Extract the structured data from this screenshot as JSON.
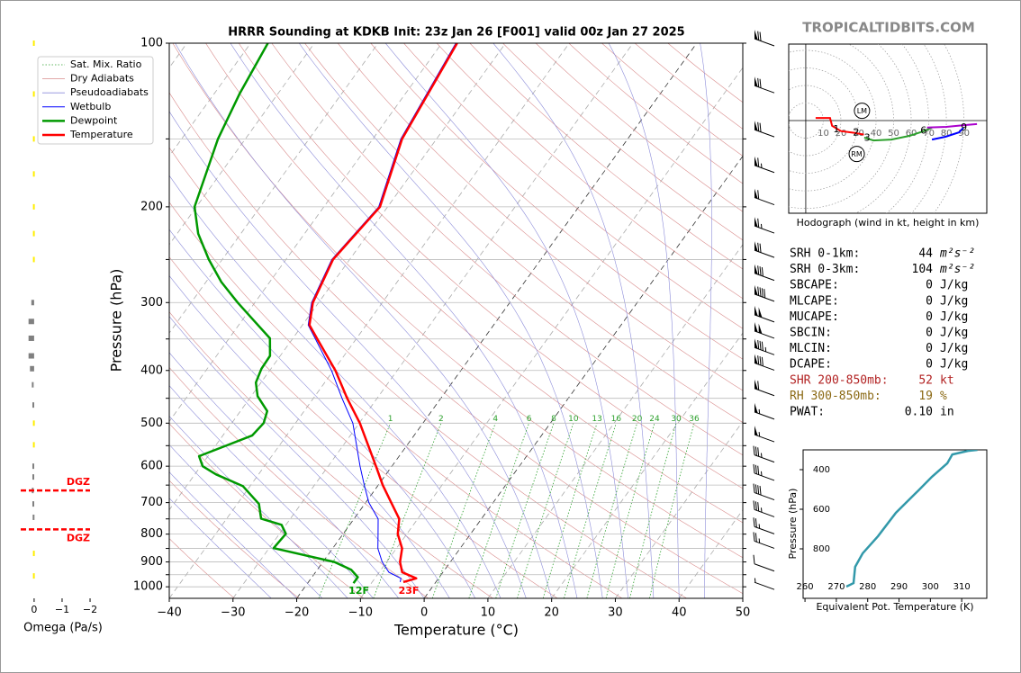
{
  "brand": "TROPICALTIDBITS.COM",
  "chart_data": [
    {
      "type": "skewt",
      "title": "HRRR Sounding at KDKB Init: 23z Jan 26 [F001] valid 00z Jan 27 2025",
      "x_label": "Temperature (°C)",
      "y_label": "Pressure (hPa)",
      "log_y": true,
      "grid": true,
      "legend": "upper left",
      "xlim": [
        -40,
        50
      ],
      "xticks": [
        {
          "value": -40,
          "label": "−40"
        },
        {
          "value": -30,
          "label": "−30"
        },
        {
          "value": -20,
          "label": "−20"
        },
        {
          "value": -10,
          "label": "−10"
        },
        0,
        10,
        20,
        30,
        40,
        50
      ],
      "ylim": [
        1050,
        100
      ],
      "yticks": [
        100,
        200,
        300,
        400,
        500,
        600,
        700,
        800,
        900,
        1000
      ],
      "minor_yticks": [
        150,
        250,
        350,
        450,
        550,
        650,
        750,
        850,
        950
      ],
      "reference_lines": [
        {
          "name": "Sat. Mix. Ratio",
          "color": "#2ca02c"
        },
        {
          "name": "Dry Adiabats",
          "color": "#d98c8c"
        },
        {
          "name": "Pseudoadiabats",
          "color": "#8c8cd9"
        }
      ],
      "series": [
        {
          "name": "Wetbulb",
          "color": "#0000ff",
          "pressure": [
            980,
            965,
            940,
            900,
            850,
            800,
            750,
            700,
            650,
            600,
            500,
            450,
            400,
            350,
            330,
            300,
            250,
            200,
            150,
            100
          ],
          "values": [
            -5.6,
            -5.9,
            -8.5,
            -10.7,
            -12.9,
            -14.5,
            -16.2,
            -19.5,
            -22.2,
            -25,
            -31,
            -35.5,
            -40.3,
            -46.4,
            -49.1,
            -51.1,
            -52.8,
            -51.4,
            -55.6,
            -57.8
          ]
        },
        {
          "name": "Dewpoint",
          "color": "#009900",
          "pressure": [
            985,
            960,
            930,
            900,
            849,
            799,
            769,
            749,
            704,
            653,
            621,
            600,
            575,
            527,
            500,
            475,
            446,
            421,
            397,
            376,
            349,
            325,
            300,
            275,
            250,
            224,
            200,
            150,
            124,
            100
          ],
          "values": [
            -12.8,
            -12.8,
            -14.7,
            -18.2,
            -29.3,
            -29.0,
            -30.7,
            -34.6,
            -36.6,
            -41.1,
            -46.7,
            -49.7,
            -51.4,
            -45.4,
            -45.0,
            -45.8,
            -49.0,
            -50.8,
            -51.5,
            -51.6,
            -53.6,
            -57.9,
            -62.7,
            -67.6,
            -72.1,
            -76.7,
            -80.3,
            -84.3,
            -86.0,
            -87.3
          ]
        },
        {
          "name": "Temperature",
          "color": "#ff0000",
          "pressure": [
            980,
            965,
            940,
            900,
            850,
            800,
            750,
            700,
            650,
            600,
            500,
            450,
            400,
            350,
            330,
            300,
            250,
            200,
            150,
            100
          ],
          "values": [
            -5.1,
            -3.5,
            -6.4,
            -7.9,
            -9.1,
            -11.4,
            -12.9,
            -16.0,
            -19.3,
            -22.5,
            -29.9,
            -34.7,
            -39.7,
            -46.1,
            -48.9,
            -50.9,
            -52.6,
            -51.2,
            -55.4,
            -57.6
          ]
        }
      ],
      "mixing_ratio_labels": [
        1,
        2,
        4,
        6,
        8,
        10,
        13,
        16,
        20,
        24,
        30,
        36
      ],
      "surface_labels": [
        "12F",
        "23F"
      ]
    },
    {
      "type": "omega",
      "x_label": "Omega (Pa/s)",
      "xlim": [
        0.48,
        -2.16
      ],
      "xticks": [
        0,
        {
          "value": -1,
          "label": "−1"
        },
        {
          "value": -2,
          "label": "−2"
        }
      ],
      "pressure": [
        100,
        124,
        150,
        174,
        200,
        224,
        250,
        300,
        325,
        349,
        376,
        397,
        425,
        463,
        500,
        548,
        600,
        628,
        665,
        704,
        745,
        868,
        955
      ],
      "values": [
        0.01,
        0.01,
        0.01,
        0.01,
        0.01,
        0.01,
        0.01,
        0.1,
        0.2,
        0.2,
        0.2,
        0.15,
        0.05,
        0.03,
        0.01,
        0.01,
        0.03,
        0.03,
        0.05,
        0.03,
        0.02,
        0.01,
        0.01
      ],
      "colors": [
        "#ffee00",
        "#ffee00",
        "#ffee00",
        "#ffee00",
        "#ffee00",
        "#ffee00",
        "#ffee00",
        "#808080",
        "#808080",
        "#808080",
        "#808080",
        "#808080",
        "#808080",
        "#808080",
        "#ffee00",
        "#ffee00",
        "#808080",
        "#808080",
        "#808080",
        "#808080",
        "#808080",
        "#ffee00",
        "#ffee00"
      ],
      "dgz": {
        "labels": [
          "DGZ",
          "DGZ"
        ],
        "pressure": [
          665,
          784
        ],
        "color": "#ff0000"
      }
    },
    {
      "type": "wind_barbs",
      "pressure": [
        100,
        122,
        147,
        171,
        196,
        221,
        245,
        270,
        295,
        322,
        345,
        370,
        395,
        440,
        486,
        535,
        583,
        630,
        684,
        735,
        790,
        840,
        925,
        1000
      ],
      "speed": [
        70,
        70,
        70,
        65,
        60,
        65,
        70,
        80,
        90,
        100,
        100,
        85,
        80,
        60,
        55,
        55,
        35,
        35,
        40,
        35,
        25,
        25,
        10,
        5
      ]
    },
    {
      "type": "hodograph",
      "caption": "Hodograph (wind in kt, height in km)",
      "xlim": [
        -9.7,
        103
      ],
      "ylim": [
        -52.8,
        43.6
      ],
      "rings": [
        10,
        20,
        30,
        40,
        50,
        60,
        70,
        80,
        90
      ],
      "segments": [
        {
          "color": "#ff0000",
          "u": [
            5.6,
            13.8,
            15,
            20,
            28,
            33
          ],
          "v": [
            1.5,
            1.5,
            -3,
            -6,
            -7,
            -8
          ]
        },
        {
          "color": "#2ca02c",
          "u": [
            33.3,
            38.5,
            48.7,
            59,
            66.7,
            71.8
          ],
          "v": [
            -9.7,
            -11.3,
            -10.8,
            -8.7,
            -6.2,
            -4.1
          ]
        },
        {
          "color": "#0000ff",
          "u": [
            71.8,
            79.5,
            87.2,
            89.7
          ],
          "v": [
            -10.8,
            -9.2,
            -6.7,
            -4.1
          ]
        },
        {
          "color": "#aa00cc",
          "u": [
            69,
            80,
            90,
            97.4
          ],
          "v": [
            -4,
            -3.6,
            -2.6,
            -2
          ]
        }
      ],
      "height_labels": {
        "labels": [
          "1",
          "2",
          "3",
          "6",
          "9"
        ],
        "u": [
          17.4,
          28.7,
          34.9,
          67,
          90
        ],
        "v": [
          -5,
          -7,
          -10,
          -6,
          -4
        ]
      },
      "storm_motion": {
        "labels": [
          "LM",
          "RM"
        ],
        "u": [
          32,
          29
        ],
        "v": [
          5.6,
          -19
        ]
      }
    },
    {
      "type": "line",
      "x_label": "Equivalent Pot. Temperature (K)",
      "y_label": "Pressure (hPa)",
      "xlim": [
        259.4,
        318
      ],
      "xticks": [
        260,
        270,
        280,
        290,
        300,
        310
      ],
      "ylim": [
        1050,
        300
      ],
      "yticks": [
        400,
        600,
        800
      ],
      "color": "#3399aa",
      "x": [
        273.2,
        275.5,
        276,
        278.4,
        283.3,
        289,
        296.2,
        300.5,
        305.4,
        307,
        312,
        315
      ],
      "y": [
        991,
        973,
        891,
        823,
        736,
        618,
        505,
        436,
        368,
        323,
        305,
        300
      ]
    }
  ],
  "parameters": {
    "rows": [
      {
        "label": "SRH 0-1km:",
        "value": "44",
        "unit": "m²s⁻²"
      },
      {
        "label": "SRH 0-3km:",
        "value": "104",
        "unit": "m²s⁻²"
      },
      {
        "label": "SBCAPE:",
        "value": "0",
        "unit": "J/kg"
      },
      {
        "label": "MLCAPE:",
        "value": "0",
        "unit": "J/kg"
      },
      {
        "label": "MUCAPE:",
        "value": "0",
        "unit": "J/kg"
      },
      {
        "label": "SBCIN:",
        "value": "0",
        "unit": "J/kg"
      },
      {
        "label": "MLCIN:",
        "value": "0",
        "unit": "J/kg"
      },
      {
        "label": "DCAPE:",
        "value": "0",
        "unit": "J/kg"
      },
      {
        "label": "SHR 200-850mb:",
        "value": "52",
        "unit": "kt",
        "color": "#b22222"
      },
      {
        "label": "RH 300-850mb:",
        "value": "19",
        "unit": "%",
        "color": "#8b6914"
      },
      {
        "label": "PWAT:",
        "value": "0.10",
        "unit": "in"
      }
    ]
  }
}
